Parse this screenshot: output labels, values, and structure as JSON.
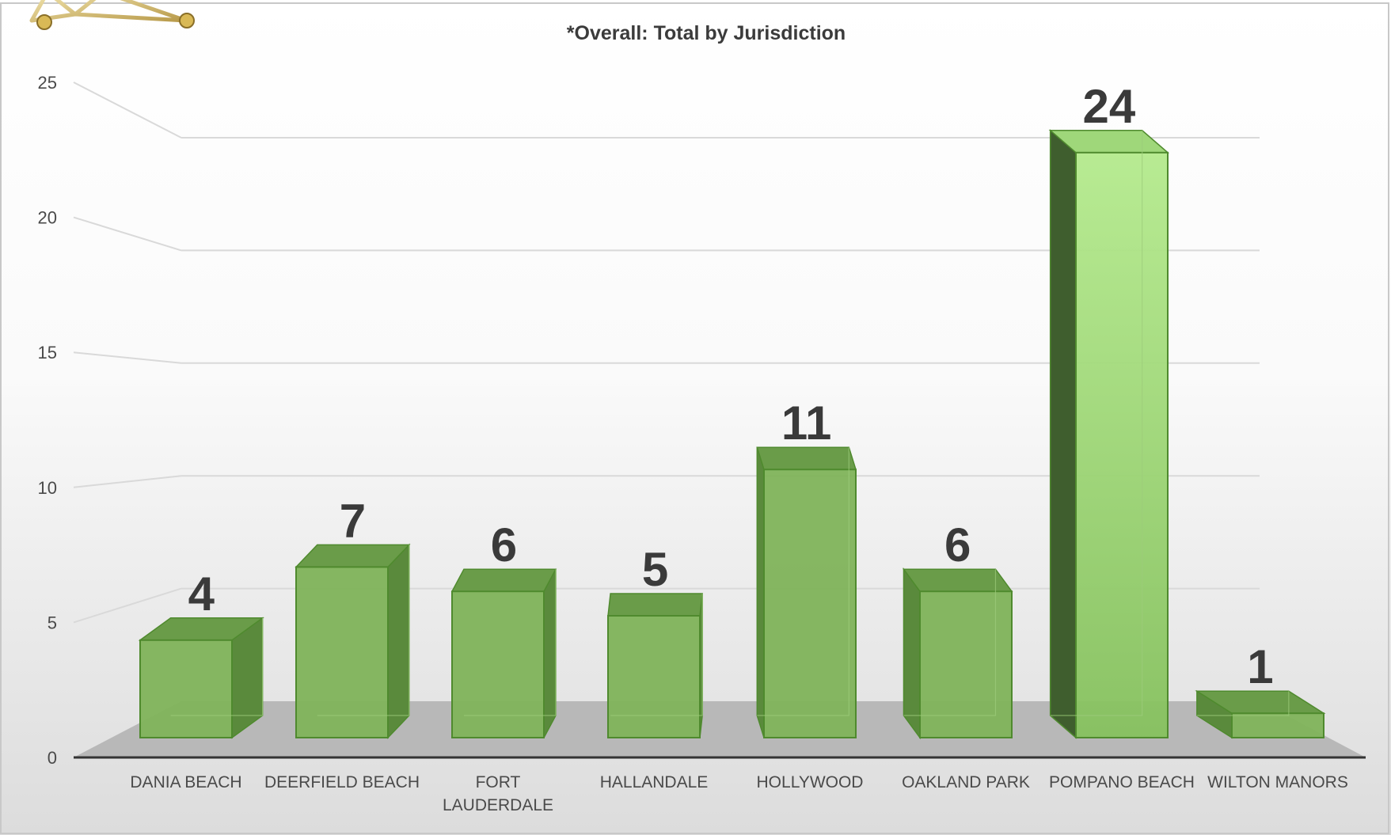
{
  "chart_data": {
    "type": "bar",
    "title": "*Overall: Total by Jurisdiction",
    "xlabel": "",
    "ylabel": "",
    "categories": [
      "DANIA BEACH",
      "DEERFIELD BEACH",
      "FORT LAUDERDALE",
      "HALLANDALE",
      "HOLLYWOOD",
      "OAKLAND PARK",
      "POMPANO BEACH",
      "WILTON MANORS"
    ],
    "category_label_lines": [
      [
        "DANIA BEACH"
      ],
      [
        "DEERFIELD BEACH"
      ],
      [
        "FORT",
        "LAUDERDALE"
      ],
      [
        "HALLANDALE"
      ],
      [
        "HOLLYWOOD"
      ],
      [
        "OAKLAND PARK"
      ],
      [
        "POMPANO BEACH"
      ],
      [
        "WILTON MANORS"
      ]
    ],
    "values": [
      4,
      7,
      6,
      5,
      11,
      6,
      24,
      1
    ],
    "data_labels": [
      "4",
      "7",
      "6",
      "5",
      "11",
      "6",
      "24",
      "1"
    ],
    "ylim": [
      0,
      25
    ],
    "yticks": [
      0,
      5,
      10,
      15,
      20,
      25
    ],
    "grid": true,
    "legend": "none",
    "style": "3d-column"
  },
  "colors": {
    "bar_front": "#7fb35a",
    "bar_side": "#5a8a3c",
    "bar_top": "#6a9c49",
    "bar_stroke": "#4f8a2e",
    "highlight_bar_front": "#9fd77a",
    "floor": "#b8b8b8",
    "gridline": "#d9d9d9",
    "axis": "#333333"
  },
  "decorations": {
    "corner_emblem": "badge-star-icon"
  }
}
